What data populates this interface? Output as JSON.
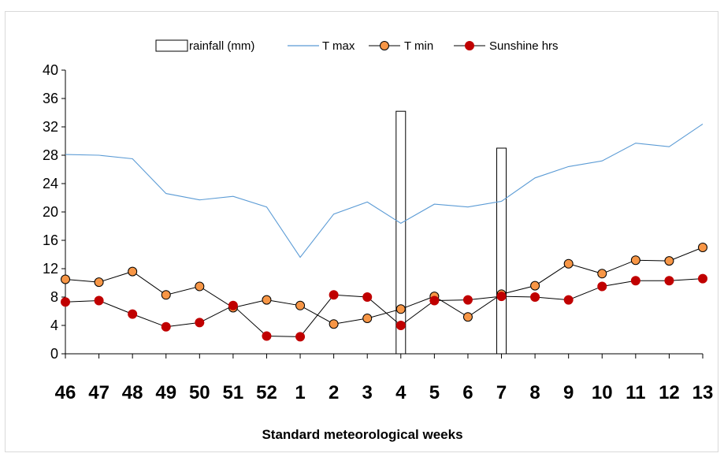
{
  "chart_data": {
    "type": "line",
    "categories": [
      "46",
      "47",
      "48",
      "49",
      "50",
      "51",
      "52",
      "1",
      "2",
      "3",
      "4",
      "5",
      "6",
      "7",
      "8",
      "9",
      "10",
      "11",
      "12",
      "13"
    ],
    "xlabel": "Standard meteorological weeks",
    "ylim": [
      0,
      40
    ],
    "yticks": [
      0,
      4,
      8,
      12,
      16,
      20,
      24,
      28,
      32,
      36,
      40
    ],
    "legend_position": "top-center",
    "grid": false,
    "series": [
      {
        "name": "rainfall (mm)",
        "type": "bar",
        "color": "#000000",
        "values": [
          0,
          0,
          0,
          0,
          0,
          0,
          0,
          0,
          0,
          0,
          34.2,
          0,
          0,
          29.0,
          0,
          0,
          0,
          0,
          0,
          0
        ]
      },
      {
        "name": "T max",
        "type": "line",
        "color": "#5b9bd5",
        "values": [
          28.1,
          28.0,
          27.5,
          22.6,
          21.7,
          22.2,
          20.7,
          13.6,
          19.7,
          21.4,
          18.4,
          21.1,
          20.7,
          21.5,
          24.8,
          26.4,
          27.2,
          29.7,
          29.2,
          32.4
        ]
      },
      {
        "name": "T min",
        "type": "line-marker",
        "color": "#f79646",
        "values": [
          10.5,
          10.1,
          11.6,
          8.3,
          9.5,
          6.5,
          7.6,
          6.8,
          4.2,
          5.0,
          6.3,
          8.1,
          5.2,
          8.4,
          9.6,
          12.7,
          11.3,
          13.2,
          13.1,
          15.0
        ]
      },
      {
        "name": "Sunshine hrs",
        "type": "line-marker",
        "color": "#c00000",
        "values": [
          7.3,
          7.5,
          5.6,
          3.8,
          4.4,
          6.8,
          2.5,
          2.4,
          8.3,
          8.0,
          4.0,
          7.5,
          7.6,
          8.1,
          8.0,
          7.6,
          9.5,
          10.3,
          10.3,
          10.6
        ]
      }
    ]
  }
}
